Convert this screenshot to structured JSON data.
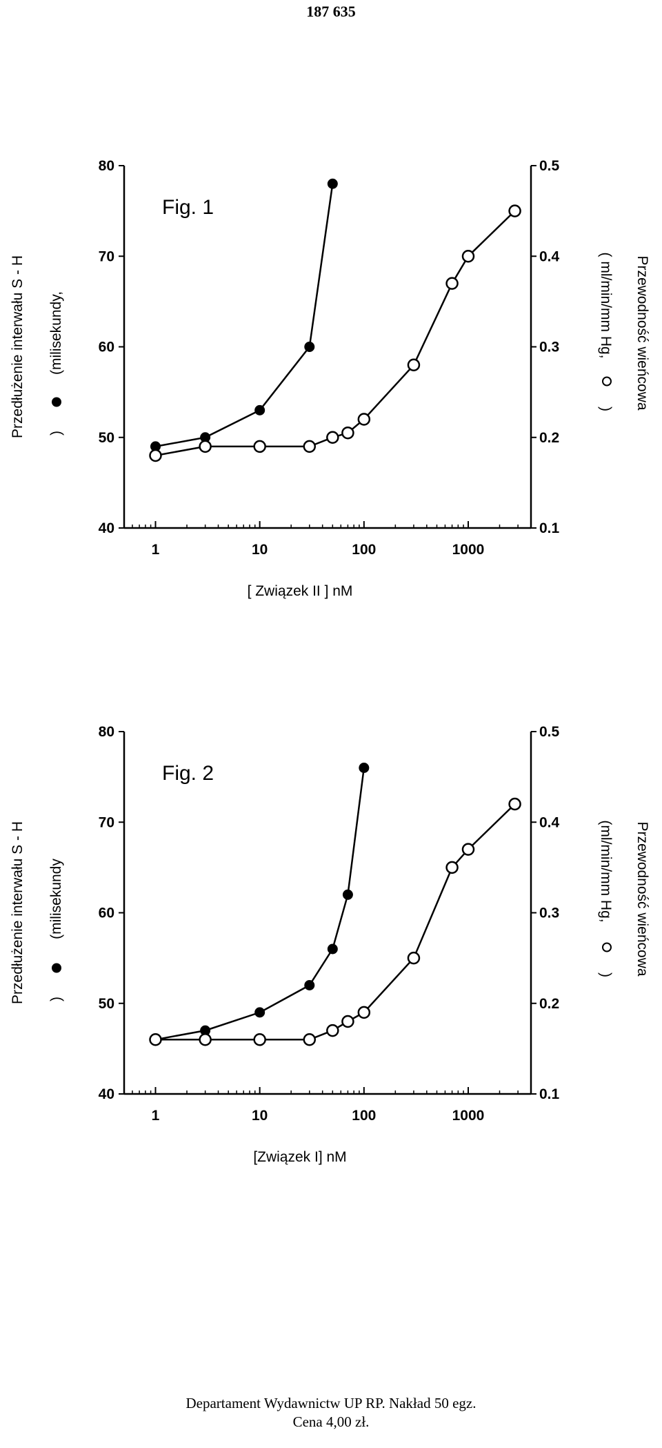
{
  "page_number": "187 635",
  "footer": {
    "line1": "Departament Wydawnictw UP RP. Nakład 50 egz.",
    "line2": "Cena 4,00 zł."
  },
  "chart_data": [
    {
      "type": "scatter",
      "title": "Fig. 1",
      "xlabel": "[ Związek II ]   nM",
      "x_scale": "log",
      "xlim": [
        0.5,
        4000
      ],
      "x_ticks": [
        "1",
        "10",
        "100",
        "1000"
      ],
      "ylabel_left": "Przedłużenie interwału S - H",
      "ylabel_left_units": "(milisekundy,",
      "ylabel_left_units_close": ")",
      "ylim_left": [
        40,
        80
      ],
      "y_ticks_left": [
        "40",
        "50",
        "60",
        "70",
        "80"
      ],
      "ylabel_right": "Przewodność wieńcowa",
      "ylabel_right_units": "( ml/min/mm Hg,",
      "ylabel_right_units_close": ")",
      "ylim_right": [
        0.1,
        0.5
      ],
      "y_ticks_right": [
        "0.1",
        "0.2",
        "0.3",
        "0.4",
        "0.5"
      ],
      "series": [
        {
          "marker": "filled",
          "axis": "left",
          "x": [
            1,
            3,
            10,
            30,
            50
          ],
          "y": [
            49,
            50,
            53,
            60,
            78
          ]
        },
        {
          "marker": "open",
          "axis": "right",
          "x": [
            1,
            3,
            10,
            30,
            50,
            70,
            100,
            300,
            700,
            1000,
            2800
          ],
          "y": [
            0.18,
            0.19,
            0.19,
            0.19,
            0.2,
            0.205,
            0.22,
            0.28,
            0.37,
            0.4,
            0.45
          ]
        }
      ]
    },
    {
      "type": "scatter",
      "title": "Fig. 2",
      "xlabel": "[Związek I]  nM",
      "x_scale": "log",
      "xlim": [
        0.5,
        4000
      ],
      "x_ticks": [
        "1",
        "10",
        "100",
        "1000"
      ],
      "ylabel_left": "Przedłużenie interwału S - H",
      "ylabel_left_units": "(milisekundy",
      "ylabel_left_units_close": ")",
      "ylim_left": [
        40,
        80
      ],
      "y_ticks_left": [
        "40",
        "50",
        "60",
        "70",
        "80"
      ],
      "ylabel_right": "Przewodność wieńcowa",
      "ylabel_right_units": "(ml/min/mm Hg,",
      "ylabel_right_units_close": ")",
      "ylim_right": [
        0.1,
        0.5
      ],
      "y_ticks_right": [
        "0.1",
        "0.2",
        "0.3",
        "0.4",
        "0.5"
      ],
      "series": [
        {
          "marker": "filled",
          "axis": "left",
          "x": [
            1,
            3,
            10,
            30,
            50,
            70,
            100
          ],
          "y": [
            46,
            47,
            49,
            52,
            56,
            62,
            76
          ]
        },
        {
          "marker": "open",
          "axis": "right",
          "x": [
            1,
            3,
            10,
            30,
            50,
            70,
            100,
            300,
            700,
            1000,
            2800
          ],
          "y": [
            0.16,
            0.16,
            0.16,
            0.16,
            0.17,
            0.18,
            0.19,
            0.25,
            0.35,
            0.37,
            0.42
          ]
        }
      ]
    }
  ]
}
